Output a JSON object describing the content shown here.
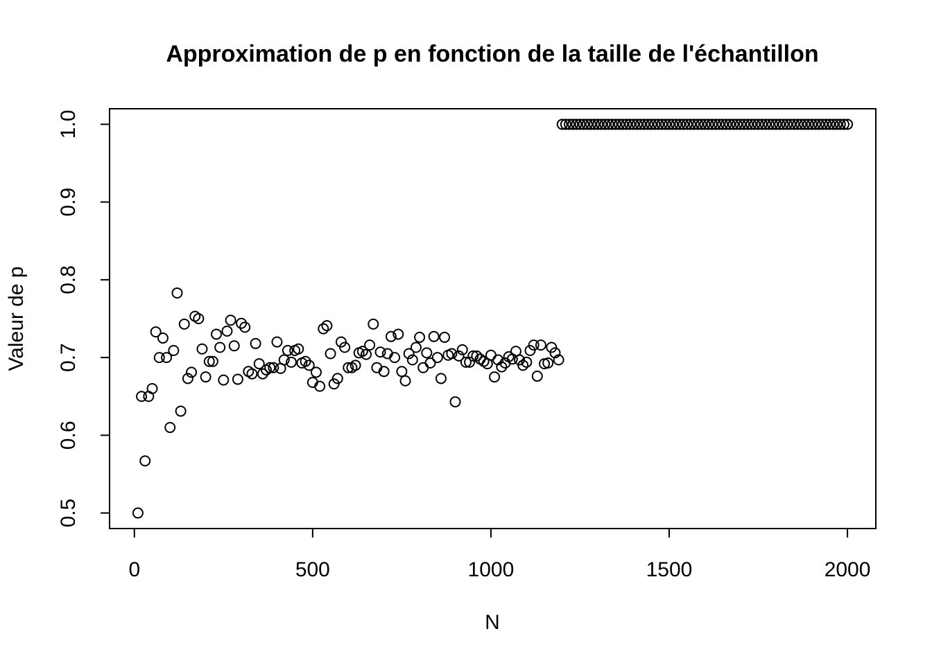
{
  "chart_data": {
    "type": "scatter",
    "title": "Approximation de p en fonction de la taille de l'échantillon",
    "xlabel": "N",
    "ylabel": "Valeur de p",
    "xlim": [
      -69.6,
      2079.6
    ],
    "ylim": [
      0.48,
      1.02
    ],
    "xticks": [
      0,
      500,
      1000,
      1500,
      2000
    ],
    "yticks": [
      0.5,
      0.6,
      0.7,
      0.8,
      0.9,
      {
        "value": 1,
        "label": "1.0"
      }
    ],
    "color": "#000000",
    "x": [
      10,
      20,
      30,
      40,
      50,
      60,
      70,
      80,
      90,
      100,
      110,
      120,
      130,
      140,
      150,
      160,
      170,
      180,
      190,
      200,
      210,
      220,
      230,
      240,
      250,
      260,
      270,
      280,
      290,
      300,
      310,
      320,
      330,
      340,
      350,
      360,
      370,
      380,
      390,
      400,
      410,
      420,
      430,
      440,
      450,
      460,
      470,
      480,
      490,
      500,
      510,
      520,
      530,
      540,
      550,
      560,
      570,
      580,
      590,
      600,
      610,
      620,
      630,
      640,
      650,
      660,
      670,
      680,
      690,
      700,
      710,
      720,
      730,
      740,
      750,
      760,
      770,
      780,
      790,
      800,
      810,
      820,
      830,
      840,
      850,
      860,
      870,
      880,
      890,
      900,
      910,
      920,
      930,
      940,
      950,
      960,
      970,
      980,
      990,
      1000,
      1010,
      1020,
      1030,
      1040,
      1050,
      1060,
      1070,
      1080,
      1090,
      1100,
      1110,
      1120,
      1130,
      1140,
      1150,
      1160,
      1170,
      1180,
      1190,
      1200,
      1210,
      1220,
      1230,
      1240,
      1250,
      1260,
      1270,
      1280,
      1290,
      1300,
      1310,
      1320,
      1330,
      1340,
      1350,
      1360,
      1370,
      1380,
      1390,
      1400,
      1410,
      1420,
      1430,
      1440,
      1450,
      1460,
      1470,
      1480,
      1490,
      1500,
      1510,
      1520,
      1530,
      1540,
      1550,
      1560,
      1570,
      1580,
      1590,
      1600,
      1610,
      1620,
      1630,
      1640,
      1650,
      1660,
      1670,
      1680,
      1690,
      1700,
      1710,
      1720,
      1730,
      1740,
      1750,
      1760,
      1770,
      1780,
      1790,
      1800,
      1810,
      1820,
      1830,
      1840,
      1850,
      1860,
      1870,
      1880,
      1890,
      1900,
      1910,
      1920,
      1930,
      1940,
      1950,
      1960,
      1970,
      1980,
      1990,
      2000
    ],
    "values": [
      0.5,
      0.65,
      0.567,
      0.65,
      0.66,
      0.733,
      0.7,
      0.725,
      0.7,
      0.61,
      0.709,
      0.783,
      0.631,
      0.743,
      0.673,
      0.681,
      0.753,
      0.75,
      0.711,
      0.675,
      0.695,
      0.695,
      0.73,
      0.713,
      0.671,
      0.734,
      0.748,
      0.715,
      0.672,
      0.744,
      0.739,
      0.682,
      0.679,
      0.718,
      0.692,
      0.679,
      0.684,
      0.687,
      0.687,
      0.72,
      0.686,
      0.697,
      0.709,
      0.694,
      0.709,
      0.711,
      0.693,
      0.695,
      0.69,
      0.668,
      0.681,
      0.663,
      0.737,
      0.741,
      0.705,
      0.666,
      0.673,
      0.72,
      0.713,
      0.687,
      0.687,
      0.69,
      0.706,
      0.708,
      0.704,
      0.716,
      0.743,
      0.687,
      0.707,
      0.682,
      0.705,
      0.727,
      0.7,
      0.73,
      0.682,
      0.67,
      0.705,
      0.697,
      0.713,
      0.726,
      0.687,
      0.706,
      0.693,
      0.727,
      0.7,
      0.673,
      0.726,
      0.703,
      0.705,
      0.643,
      0.702,
      0.71,
      0.694,
      0.694,
      0.702,
      0.702,
      0.698,
      0.695,
      0.692,
      0.703,
      0.675,
      0.697,
      0.688,
      0.693,
      0.701,
      0.698,
      0.708,
      0.697,
      0.69,
      0.694,
      0.709,
      0.716,
      0.676,
      0.716,
      0.692,
      0.693,
      0.713,
      0.706,
      0.697,
      1,
      1,
      1,
      1,
      1,
      1,
      1,
      1,
      1,
      1,
      1,
      1,
      1,
      1,
      1,
      1,
      1,
      1,
      1,
      1,
      1,
      1,
      1,
      1,
      1,
      1,
      1,
      1,
      1,
      1,
      1,
      1,
      1,
      1,
      1,
      1,
      1,
      1,
      1,
      1,
      1,
      1,
      1,
      1,
      1,
      1,
      1,
      1,
      1,
      1,
      1,
      1,
      1,
      1,
      1,
      1,
      1,
      1,
      1,
      1,
      1,
      1,
      1,
      1,
      1,
      1,
      1,
      1,
      1,
      1,
      1,
      1,
      1,
      1,
      1,
      1,
      1,
      1,
      1,
      1,
      1
    ]
  }
}
